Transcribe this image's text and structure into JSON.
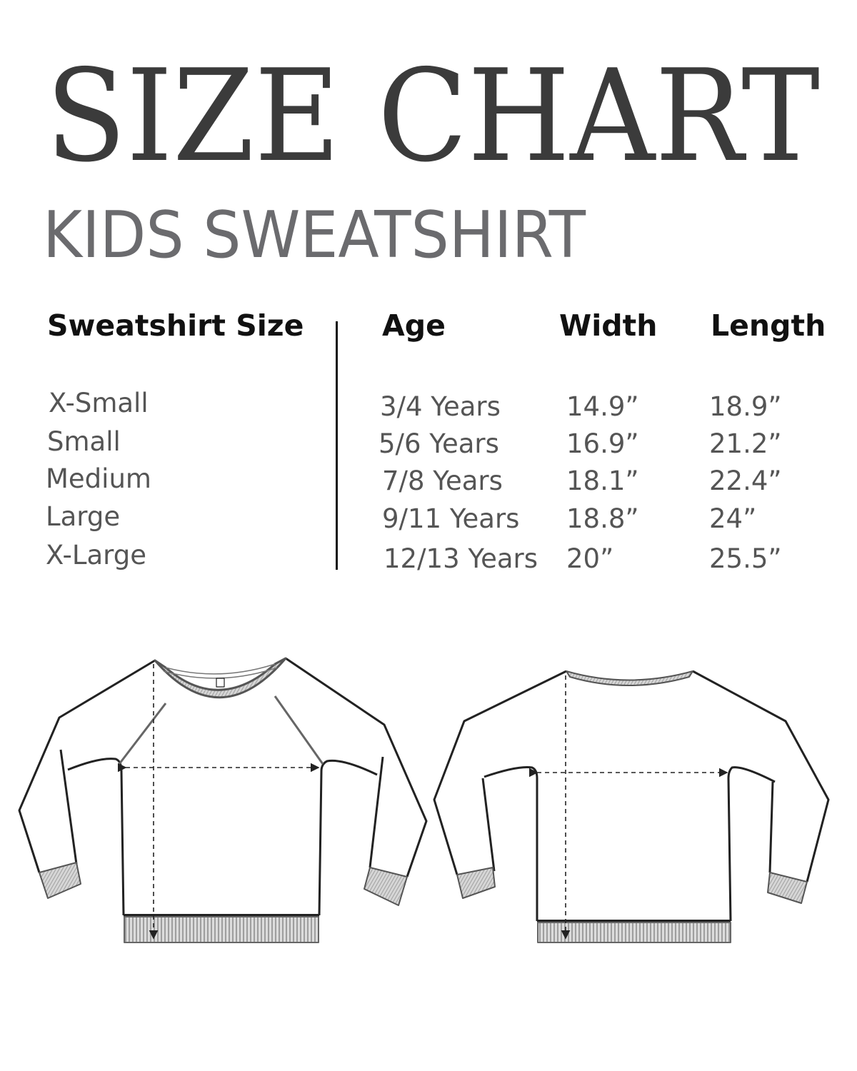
{
  "title": "SIZE CHART",
  "subtitle": "KIDS SWEATSHIRT",
  "colors": {
    "title": "#3b3b3b",
    "subtitle": "#6b6b6e",
    "header": "#111111",
    "cell": "#555555"
  },
  "table": {
    "headers": {
      "size": "Sweatshirt Size",
      "age": "Age",
      "width": "Width",
      "length": "Length"
    },
    "rows": [
      {
        "size": "X-Small",
        "age": "3/4 Years",
        "width": "14.9”",
        "length": "18.9”"
      },
      {
        "size": "Small",
        "age": "5/6 Years",
        "width": "16.9”",
        "length": "21.2”"
      },
      {
        "size": "Medium",
        "age": "7/8 Years",
        "width": "18.1”",
        "length": "22.4”"
      },
      {
        "size": "Large",
        "age": "9/11 Years",
        "width": "18.8”",
        "length": "24”"
      },
      {
        "size": "X-Large",
        "age": "12/13 Years",
        "width": "20”",
        "length": "25.5”"
      }
    ]
  },
  "illustrations": [
    "sweatshirt-front",
    "sweatshirt-back"
  ]
}
